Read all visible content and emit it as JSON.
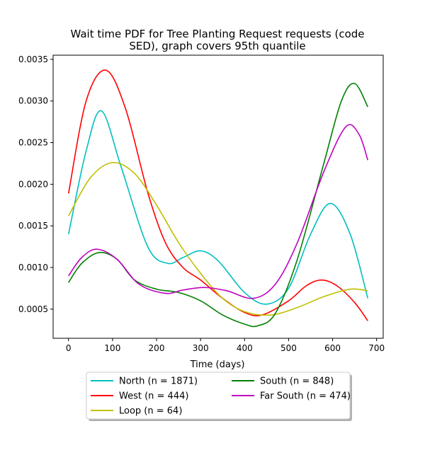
{
  "chart_data": {
    "type": "line",
    "title_line1": "Wait time PDF for Tree Planting Request  requests (code",
    "title_line2": "SED), graph covers 95th quantile",
    "xlabel": "Time (days)",
    "ylabel": "",
    "xlim": [
      -35,
      715
    ],
    "ylim": [
      0.00015,
      0.00355
    ],
    "xticks": [
      0,
      100,
      200,
      300,
      400,
      500,
      600,
      700
    ],
    "yticks": [
      0.0005,
      0.001,
      0.0015,
      0.002,
      0.0025,
      0.003,
      0.0035
    ],
    "ytick_labels": [
      "0.0005",
      "0.0010",
      "0.0015",
      "0.0020",
      "0.0025",
      "0.0030",
      "0.0035"
    ],
    "grid": false,
    "legend": "below plot, two columns",
    "series": [
      {
        "name": "North (n = 1871)",
        "color": "#00bfbf",
        "x": [
          0,
          40,
          75,
          120,
          180,
          225,
          260,
          300,
          340,
          400,
          450,
          500,
          550,
          595,
          640,
          680
        ],
        "y": [
          0.0014,
          0.0024,
          0.00288,
          0.0022,
          0.00125,
          0.00105,
          0.00112,
          0.0012,
          0.00108,
          0.0007,
          0.00056,
          0.00075,
          0.0014,
          0.00177,
          0.0014,
          0.00063
        ]
      },
      {
        "name": "West (n = 444)",
        "color": "#ff0000",
        "x": [
          0,
          40,
          85,
          130,
          180,
          220,
          260,
          300,
          350,
          400,
          440,
          500,
          540,
          575,
          610,
          650,
          680
        ],
        "y": [
          0.00189,
          0.003,
          0.00337,
          0.0029,
          0.0019,
          0.0013,
          0.001,
          0.00085,
          0.00063,
          0.00046,
          0.00043,
          0.0006,
          0.00078,
          0.00085,
          0.00078,
          0.00058,
          0.00036
        ]
      },
      {
        "name": "Loop (n = 64)",
        "color": "#bfbf00",
        "x": [
          0,
          50,
          100,
          150,
          200,
          250,
          300,
          350,
          400,
          460,
          520,
          580,
          640,
          680
        ],
        "y": [
          0.00162,
          0.00208,
          0.00226,
          0.00213,
          0.00175,
          0.0013,
          0.00093,
          0.00063,
          0.00047,
          0.00043,
          0.00052,
          0.00065,
          0.00074,
          0.00072
        ]
      },
      {
        "name": "South (n = 848)",
        "color": "#008000",
        "x": [
          0,
          30,
          70,
          110,
          150,
          200,
          250,
          300,
          350,
          400,
          430,
          470,
          520,
          580,
          620,
          650,
          680
        ],
        "y": [
          0.00082,
          0.00105,
          0.00118,
          0.0011,
          0.00085,
          0.00074,
          0.0007,
          0.0006,
          0.00043,
          0.00032,
          0.0003,
          0.00045,
          0.0011,
          0.00225,
          0.003,
          0.00321,
          0.00293
        ]
      },
      {
        "name": "Far South (n = 474)",
        "color": "#bf00bf",
        "x": [
          0,
          30,
          65,
          110,
          160,
          220,
          260,
          310,
          360,
          420,
          470,
          520,
          580,
          630,
          660,
          680
        ],
        "y": [
          0.0009,
          0.00112,
          0.00122,
          0.0011,
          0.0008,
          0.00069,
          0.00073,
          0.00076,
          0.00072,
          0.00063,
          0.0008,
          0.0013,
          0.00215,
          0.00269,
          0.0026,
          0.00229
        ]
      }
    ]
  }
}
